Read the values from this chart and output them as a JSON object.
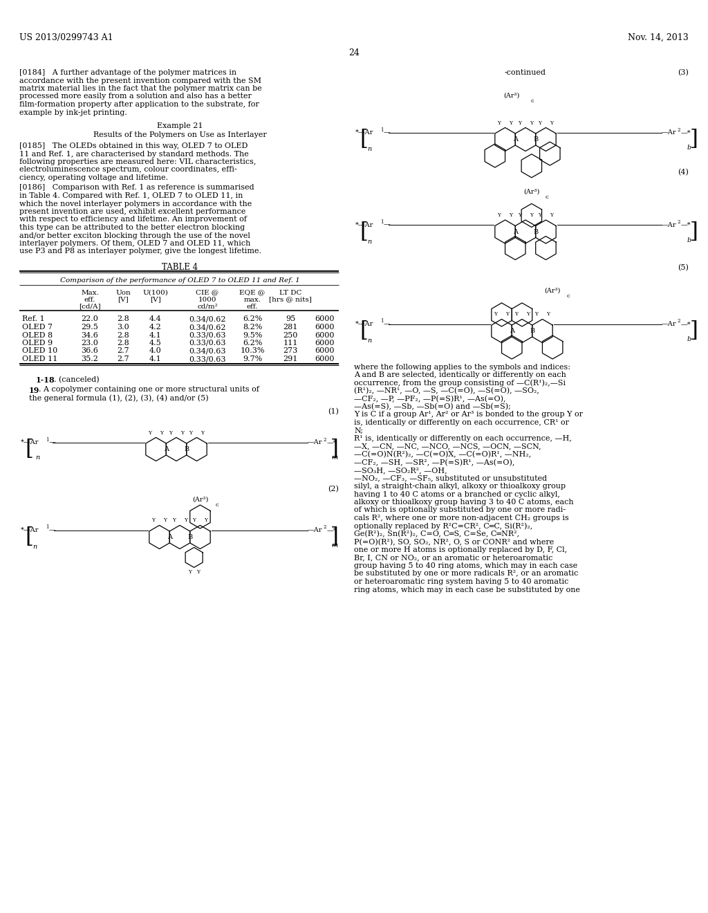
{
  "bg_color": "#ffffff",
  "header_left": "US 2013/0299743 A1",
  "header_right": "Nov. 14, 2013",
  "page_number": "24",
  "para_0184_lines": [
    "[0184]   A further advantage of the polymer matrices in",
    "accordance with the present invention compared with the SM",
    "matrix material lies in the fact that the polymer matrix can be",
    "processed more easily from a solution and also has a better",
    "film-formation property after application to the substrate, for",
    "example by ink-jet printing."
  ],
  "example_title": "Example 21",
  "example_subtitle": "Results of the Polymers on Use as Interlayer",
  "para_0185_lines": [
    "[0185]   The OLEDs obtained in this way, OLED 7 to OLED",
    "11 and Ref. 1, are characterised by standard methods. The",
    "following properties are measured here: VIL characteristics,",
    "electroluminescence spectrum, colour coordinates, effi-",
    "ciency, operating voltage and lifetime."
  ],
  "para_0186_lines": [
    "[0186]   Comparison with Ref. 1 as reference is summarised",
    "in Table 4. Compared with Ref. 1, OLED 7 to OLED 11, in",
    "which the novel interlayer polymers in accordance with the",
    "present invention are used, exhibit excellent performance",
    "with respect to efficiency and lifetime. An improvement of",
    "this type can be attributed to the better electron blocking",
    "and/or better exciton blocking through the use of the novel",
    "interlayer polymers. Of them, OLED 7 and OLED 11, which",
    "use P3 and P8 as interlayer polymer, give the longest lifetime."
  ],
  "table_title": "TABLE 4",
  "table_subtitle": "Comparison of the performance of OLED 7 to OLED 11 and Ref. 1",
  "table_rows": [
    [
      "Ref. 1",
      "22.0",
      "2.8",
      "4.4",
      "0.34/0.62",
      "6.2%",
      "95",
      "6000"
    ],
    [
      "OLED 7",
      "29.5",
      "3.0",
      "4.2",
      "0.34/0.62",
      "8.2%",
      "281",
      "6000"
    ],
    [
      "OLED 8",
      "34.6",
      "2.8",
      "4.1",
      "0.33/0.63",
      "9.5%",
      "250",
      "6000"
    ],
    [
      "OLED 9",
      "23.0",
      "2.8",
      "4.5",
      "0.33/0.63",
      "6.2%",
      "111",
      "6000"
    ],
    [
      "OLED 10",
      "36.6",
      "2.7",
      "4.0",
      "0.34/0.63",
      "10.3%",
      "273",
      "6000"
    ],
    [
      "OLED 11",
      "35.2",
      "2.7",
      "4.1",
      "0.33/0.63",
      "9.7%",
      "291",
      "6000"
    ]
  ],
  "continued_label": "-continued",
  "right_text_lines": [
    "where the following applies to the symbols and indices:",
    "A and B are selected, identically or differently on each",
    "occurrence, from the group consisting of —C(R¹)₂,—Si",
    "(R¹)₂, —NR¹, —O, —S, —C(=O), —S(=O), —SO₂,",
    "—CF₂, —P, —PF₂, —P(=S)R¹, —As(=O),",
    "—As(=S), —Sb, —Sb(=O) and —Sb(=S);",
    "Y is C if a group Ar¹, Ar² or Ar³ is bonded to the group Y or",
    "is, identically or differently on each occurrence, CR¹ or",
    "N;",
    "R¹ is, identically or differently on each occurrence, —H,",
    "—X, —CN, —NC, —NCO, —NCS, —OCN, —SCN,",
    "—C(=O)N(R²)₂, —C(=O)X, —C(=O)R¹, —NH₂,",
    "—CF₂, —SH, —SR², —P(=S)R¹, —As(=O),",
    "—SO₃H, —SO₂R², —OH,",
    "—NO₂, —CF₃, —SF₅, substituted or unsubstituted",
    "silyl, a straight-chain alkyl, alkoxy or thioalkoxy group",
    "having 1 to 40 C atoms or a branched or cyclic alkyl,",
    "alkoxy or thioalkoxy group having 3 to 40 C atoms, each",
    "of which is optionally substituted by one or more radi-",
    "cals R², where one or more non-adjacent CH₂ groups is",
    "optionally replaced by R²C=CR², C═C, Si(R²)₂,",
    "Ge(R²)₂, Sn(R²)₂, C=O, C═S, C=Se, C═NR²,",
    "P(=O)(R²), SO, SO₂, NR², O, S or CONR² and where",
    "one or more H atoms is optionally replaced by D, F, Cl,",
    "Br, I, CN or NO₂, or an aromatic or heteroaromatic",
    "group having 5 to 40 ring atoms, which may in each case",
    "be substituted by one or more radicals R², or an aromatic",
    "or heteroaromatic ring system having 5 to 40 aromatic",
    "ring atoms, which may in each case be substituted by one"
  ]
}
